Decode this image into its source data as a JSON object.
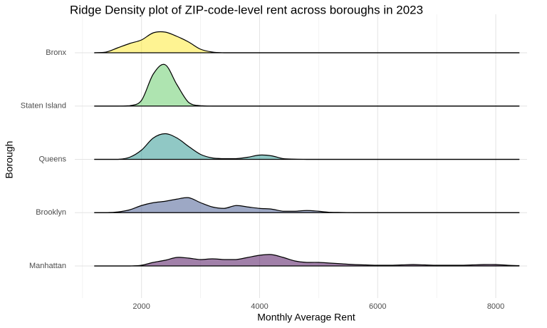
{
  "chart_data": {
    "type": "ridgeline",
    "title": "Ridge Density plot of ZIP-code-level rent across boroughs in 2023",
    "x_label": "Monthly Average Rent",
    "y_label": "Borough",
    "xlim": [
      870,
      8530
    ],
    "xticks": [
      2000,
      4000,
      6000,
      8000
    ],
    "x_minor_ticks": [
      1000,
      3000,
      5000,
      7000
    ],
    "grid": true,
    "x": [
      1200,
      1400,
      1600,
      1800,
      2000,
      2200,
      2400,
      2600,
      2800,
      3000,
      3200,
      3400,
      3600,
      3800,
      4000,
      4200,
      4400,
      4600,
      4800,
      5000,
      5200,
      5400,
      5600,
      5800,
      6000,
      6200,
      6400,
      6600,
      6800,
      7000,
      7200,
      7400,
      7600,
      7800,
      8000,
      8200,
      8400
    ],
    "series": [
      {
        "name": "Bronx",
        "color": "#FDE725",
        "values": [
          0,
          1,
          7,
          13,
          18,
          28,
          29,
          23,
          15,
          5,
          1,
          0,
          0,
          0,
          0,
          0,
          0,
          0,
          0,
          0,
          0,
          0,
          0,
          0,
          0,
          0,
          0,
          0,
          0,
          0,
          0,
          0,
          0,
          0,
          0,
          0,
          0
        ]
      },
      {
        "name": "Staten Island",
        "color": "#5EC962",
        "values": [
          0,
          0,
          0,
          0.5,
          8,
          45,
          58,
          30,
          5,
          0.5,
          0,
          0,
          0,
          0,
          0,
          0,
          0,
          0,
          0,
          0,
          0,
          0,
          0,
          0,
          0,
          0,
          0,
          0,
          0,
          0,
          0,
          0,
          0,
          0,
          0,
          0,
          0
        ]
      },
      {
        "name": "Queens",
        "color": "#21918C",
        "values": [
          0,
          0,
          0,
          3,
          13,
          30,
          36,
          30,
          18,
          7,
          2,
          1,
          1,
          3,
          6,
          5,
          1,
          0.3,
          0,
          0,
          0,
          0,
          0,
          0,
          0,
          0,
          0,
          0,
          0,
          0,
          0,
          0,
          0,
          0,
          0,
          0,
          0
        ]
      },
      {
        "name": "Brooklyn",
        "color": "#3B528B",
        "values": [
          0,
          0,
          1,
          4,
          10,
          14,
          16,
          19,
          21,
          14,
          8,
          6,
          10,
          8,
          6,
          5,
          2,
          2,
          3,
          2,
          0.5,
          0.3,
          0,
          0,
          0,
          0,
          0,
          0,
          0,
          0,
          0,
          0,
          0,
          0,
          0,
          0,
          0
        ]
      },
      {
        "name": "Manhattan",
        "color": "#440154",
        "values": [
          0,
          0,
          0,
          0,
          1,
          5,
          8,
          12,
          11,
          9,
          10,
          9,
          9,
          12,
          15,
          16,
          12,
          7,
          5,
          5,
          4,
          3,
          2,
          1.5,
          1,
          1,
          1.5,
          2,
          1.5,
          1,
          1,
          1,
          1.5,
          2,
          2,
          1,
          0.5
        ]
      }
    ]
  }
}
